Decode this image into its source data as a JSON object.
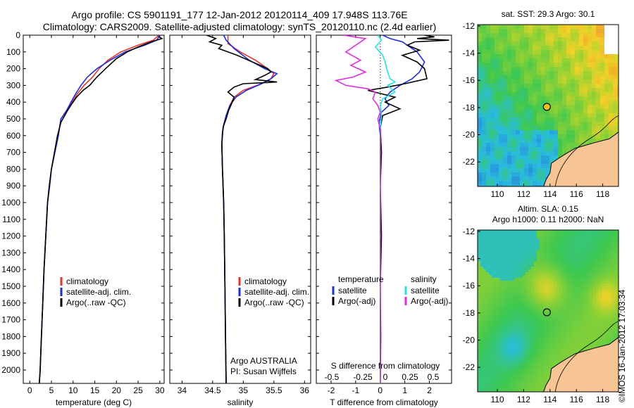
{
  "titles": {
    "line1": "Argo profile: CS 5901191_177 12-Jan-2012 20120114_409 17.948S 113.76E",
    "line2": "Climatology: CARS2009. Satellite-adjusted climatology: synTS_20120110.nc (2.4d earlier)"
  },
  "colors": {
    "clim": "#e8312a",
    "sat": "#1a2ee0",
    "argo": "#000000",
    "cyan": "#22e5e5",
    "magenta": "#e22ee0"
  },
  "chart_data": [
    {
      "type": "line",
      "name": "temperature",
      "xlabel": "temperature (deg C)",
      "ylim": [
        2080,
        0
      ],
      "xlim": [
        -1.5,
        31
      ],
      "xticks": [
        "0",
        "5",
        "10",
        "15",
        "20",
        "25",
        "30"
      ],
      "yticks": [
        "0",
        "100",
        "200",
        "300",
        "400",
        "500",
        "600",
        "700",
        "800",
        "900",
        "1000",
        "1100",
        "1200",
        "1300",
        "1400",
        "1500",
        "1600",
        "1700",
        "1800",
        "1900",
        "2000"
      ],
      "legend": [
        "climatology",
        "satellite-adj. clim.",
        "Argo(..raw -QC)"
      ],
      "series": [
        {
          "key": "clim",
          "points": [
            [
              29.8,
              0
            ],
            [
              28.5,
              30
            ],
            [
              25,
              60
            ],
            [
              21,
              100
            ],
            [
              18,
              150
            ],
            [
              16,
              200
            ],
            [
              14.5,
              250
            ],
            [
              12.5,
              300
            ],
            [
              11,
              350
            ],
            [
              9.8,
              400
            ],
            [
              8.5,
              450
            ],
            [
              7.2,
              500
            ],
            [
              6.6,
              600
            ],
            [
              5.8,
              700
            ],
            [
              5,
              800
            ],
            [
              4.6,
              900
            ],
            [
              4.1,
              1000
            ],
            [
              3.7,
              1200
            ],
            [
              3.3,
              1400
            ],
            [
              3,
              1600
            ],
            [
              2.7,
              1800
            ],
            [
              2.4,
              2000
            ],
            [
              2.2,
              2080
            ]
          ]
        },
        {
          "key": "sat",
          "points": [
            [
              30,
              0
            ],
            [
              29.3,
              30
            ],
            [
              26.5,
              60
            ],
            [
              22,
              100
            ],
            [
              18.5,
              150
            ],
            [
              15.5,
              200
            ],
            [
              13.3,
              250
            ],
            [
              11.8,
              300
            ],
            [
              10.6,
              350
            ],
            [
              9.5,
              400
            ],
            [
              8.5,
              450
            ],
            [
              7.2,
              500
            ],
            [
              6.6,
              600
            ],
            [
              5.8,
              700
            ],
            [
              5,
              800
            ],
            [
              4.6,
              900
            ],
            [
              4.1,
              1000
            ],
            [
              3.7,
              1200
            ],
            [
              3.3,
              1400
            ],
            [
              3,
              1600
            ],
            [
              2.7,
              1800
            ],
            [
              2.4,
              2000
            ],
            [
              2.2,
              2080
            ]
          ]
        },
        {
          "key": "argo",
          "points": [
            [
              29.8,
              10
            ],
            [
              30.5,
              20
            ],
            [
              28,
              40
            ],
            [
              25,
              70
            ],
            [
              22.5,
              100
            ],
            [
              20,
              140
            ],
            [
              17.5,
              200
            ],
            [
              15.5,
              250
            ],
            [
              14.8,
              270
            ],
            [
              13.8,
              300
            ],
            [
              12.3,
              330
            ],
            [
              10.8,
              370
            ],
            [
              9.7,
              410
            ],
            [
              8.5,
              460
            ],
            [
              7.2,
              520
            ],
            [
              6.4,
              600
            ],
            [
              5.7,
              700
            ],
            [
              5,
              800
            ],
            [
              4.5,
              900
            ],
            [
              4.1,
              1000
            ],
            [
              3.7,
              1200
            ],
            [
              3.3,
              1400
            ],
            [
              3,
              1600
            ],
            [
              2.7,
              1800
            ],
            [
              2.4,
              2000
            ],
            [
              2.2,
              2080
            ]
          ]
        }
      ]
    },
    {
      "type": "line",
      "name": "salinity",
      "xlabel": "salinity",
      "ylim": [
        2080,
        0
      ],
      "xlim": [
        33.8,
        36.1
      ],
      "xticks": [
        "34",
        "34.5",
        "35",
        "35.5",
        "36"
      ],
      "legend": [
        "climatology",
        "satellite-adj. clim.",
        "Argo(..raw -QC)"
      ],
      "annotation": [
        "Argo AUSTRALIA",
        "PI: Susan Wijffels"
      ],
      "series": [
        {
          "key": "clim",
          "points": [
            [
              34.75,
              0
            ],
            [
              34.75,
              50
            ],
            [
              34.95,
              100
            ],
            [
              35.2,
              150
            ],
            [
              35.4,
              200
            ],
            [
              35.5,
              230
            ],
            [
              35.45,
              260
            ],
            [
              35.3,
              290
            ],
            [
              35.0,
              330
            ],
            [
              34.85,
              370
            ],
            [
              34.78,
              420
            ],
            [
              34.72,
              480
            ],
            [
              34.67,
              550
            ],
            [
              34.65,
              650
            ],
            [
              34.66,
              800
            ],
            [
              34.68,
              1000
            ],
            [
              34.69,
              1200
            ],
            [
              34.7,
              1500
            ],
            [
              34.71,
              1800
            ],
            [
              34.72,
              2080
            ]
          ]
        },
        {
          "key": "sat",
          "points": [
            [
              34.68,
              0
            ],
            [
              34.72,
              30
            ],
            [
              34.85,
              80
            ],
            [
              35.1,
              150
            ],
            [
              35.35,
              200
            ],
            [
              35.55,
              230
            ],
            [
              35.45,
              260
            ],
            [
              35.3,
              290
            ],
            [
              35.05,
              330
            ],
            [
              34.88,
              370
            ],
            [
              34.78,
              420
            ],
            [
              34.72,
              480
            ],
            [
              34.67,
              550
            ],
            [
              34.65,
              650
            ],
            [
              34.66,
              800
            ],
            [
              34.68,
              1000
            ],
            [
              34.69,
              1200
            ],
            [
              34.7,
              1500
            ],
            [
              34.71,
              1800
            ],
            [
              34.72,
              2080
            ]
          ]
        },
        {
          "key": "argo",
          "points": [
            [
              34.4,
              0
            ],
            [
              34.55,
              20
            ],
            [
              34.45,
              40
            ],
            [
              34.65,
              60
            ],
            [
              34.6,
              80
            ],
            [
              34.9,
              120
            ],
            [
              35.15,
              160
            ],
            [
              35.4,
              200
            ],
            [
              35.45,
              220
            ],
            [
              35.35,
              240
            ],
            [
              35.2,
              265
            ],
            [
              35.55,
              280
            ],
            [
              35.0,
              290
            ],
            [
              34.85,
              310
            ],
            [
              34.75,
              340
            ],
            [
              34.85,
              370
            ],
            [
              34.82,
              400
            ],
            [
              34.76,
              450
            ],
            [
              34.72,
              500
            ],
            [
              34.68,
              540
            ],
            [
              34.66,
              580
            ],
            [
              34.65,
              650
            ],
            [
              34.66,
              800
            ],
            [
              34.68,
              1000
            ],
            [
              34.69,
              1200
            ],
            [
              34.7,
              1500
            ],
            [
              34.71,
              1800
            ],
            [
              34.72,
              2080
            ]
          ]
        }
      ]
    },
    {
      "type": "line",
      "name": "differences",
      "xlabel": "T difference from climatology",
      "xlim": [
        -2.6,
        2.9
      ],
      "xticks": [
        "-2",
        "-1",
        "0",
        "1",
        "2"
      ],
      "top_xlabel": "S difference from climatology",
      "top_xticks": [
        "-0.5",
        "-0.25",
        "0",
        "0.25",
        "0.5"
      ],
      "ylim": [
        2080,
        0
      ],
      "legend_left": [
        "temperature",
        "satellite",
        "Argo(-adj)"
      ],
      "legend_right": [
        "salinity",
        "satellite",
        "Argo(-adj)"
      ],
      "series": [
        {
          "key": "sat",
          "label": "temperature satellite",
          "points": [
            [
              0.1,
              0
            ],
            [
              0.4,
              20
            ],
            [
              0.9,
              40
            ],
            [
              1.2,
              70
            ],
            [
              1.5,
              100
            ],
            [
              1.8,
              160
            ],
            [
              1.6,
              220
            ],
            [
              1.3,
              260
            ],
            [
              0.8,
              300
            ],
            [
              0.4,
              340
            ],
            [
              0.2,
              380
            ],
            [
              0.35,
              420
            ],
            [
              0.05,
              460
            ],
            [
              -0.05,
              520
            ],
            [
              0,
              600
            ],
            [
              0,
              800
            ],
            [
              0,
              1000
            ],
            [
              0,
              1500
            ],
            [
              0,
              2080
            ]
          ]
        },
        {
          "key": "argo",
          "label": "temperature Argo(-adj)",
          "points": [
            [
              1.8,
              0
            ],
            [
              2.2,
              10
            ],
            [
              1.5,
              20
            ],
            [
              2.8,
              30
            ],
            [
              1.4,
              40
            ],
            [
              1.1,
              60
            ],
            [
              1.6,
              90
            ],
            [
              0.9,
              120
            ],
            [
              1.5,
              160
            ],
            [
              1.8,
              200
            ],
            [
              1.9,
              260
            ],
            [
              1.0,
              290
            ],
            [
              0.3,
              310
            ],
            [
              -0.5,
              330
            ],
            [
              0.6,
              370
            ],
            [
              0.2,
              400
            ],
            [
              0.8,
              440
            ],
            [
              0.1,
              480
            ],
            [
              0,
              550
            ],
            [
              0.05,
              700
            ],
            [
              0,
              900
            ],
            [
              0.05,
              1200
            ],
            [
              0,
              1500
            ],
            [
              0.02,
              1800
            ],
            [
              0,
              2080
            ]
          ]
        },
        {
          "key": "cyan",
          "label": "salinity satellite",
          "points": [
            [
              -0.1,
              0
            ],
            [
              0.05,
              30
            ],
            [
              -0.2,
              70
            ],
            [
              0.1,
              120
            ],
            [
              0.2,
              160
            ],
            [
              0.3,
              220
            ],
            [
              0.4,
              260
            ],
            [
              0.6,
              280
            ],
            [
              0.3,
              300
            ],
            [
              0.6,
              340
            ],
            [
              0.1,
              380
            ],
            [
              0,
              420
            ],
            [
              0.05,
              480
            ],
            [
              0,
              550
            ],
            [
              0,
              700
            ],
            [
              0,
              900
            ],
            [
              0,
              1200
            ],
            [
              0,
              1500
            ],
            [
              0,
              2080
            ]
          ]
        },
        {
          "key": "magenta",
          "label": "salinity Argo(-adj)",
          "points": [
            [
              -1.5,
              0
            ],
            [
              -0.6,
              20
            ],
            [
              -1.0,
              60
            ],
            [
              -1.4,
              100
            ],
            [
              -0.8,
              150
            ],
            [
              -1.2,
              180
            ],
            [
              -0.6,
              220
            ],
            [
              -1.1,
              250
            ],
            [
              -1.8,
              270
            ],
            [
              -1.4,
              300
            ],
            [
              -0.5,
              320
            ],
            [
              -0.2,
              340
            ],
            [
              -0.3,
              380
            ],
            [
              -0.1,
              420
            ],
            [
              0,
              460
            ],
            [
              -0.1,
              500
            ],
            [
              0,
              560
            ],
            [
              0,
              700
            ],
            [
              0,
              900
            ],
            [
              0,
              1200
            ],
            [
              0,
              1500
            ],
            [
              0,
              2080
            ]
          ]
        }
      ]
    },
    {
      "type": "heatmap",
      "name": "map-sst",
      "title": "sat. SST: 29.3  Argo: 30.1",
      "xticks": [
        "110",
        "112",
        "114",
        "116",
        "118"
      ],
      "yticks": [
        "-12",
        "-14",
        "-16",
        "-18",
        "-20",
        "-22"
      ],
      "xlim": [
        108.5,
        119.2
      ],
      "ylim": [
        -23.8,
        -11.9
      ],
      "marker": [
        113.76,
        -17.95
      ]
    },
    {
      "type": "heatmap",
      "name": "map-sla",
      "title_lines": [
        "Altim. SLA: 0.15",
        "Argo h1000: 0.11 h2000: NaN"
      ],
      "xticks": [
        "110",
        "112",
        "114",
        "116",
        "118"
      ],
      "yticks": [
        "-12",
        "-14",
        "-16",
        "-18",
        "-20",
        "-22"
      ],
      "xlim": [
        108.5,
        119.2
      ],
      "ylim": [
        -23.8,
        -11.9
      ],
      "marker": [
        113.76,
        -17.95
      ]
    }
  ],
  "stamp": "©IMOS 16-Jan-2012 17:03:34"
}
